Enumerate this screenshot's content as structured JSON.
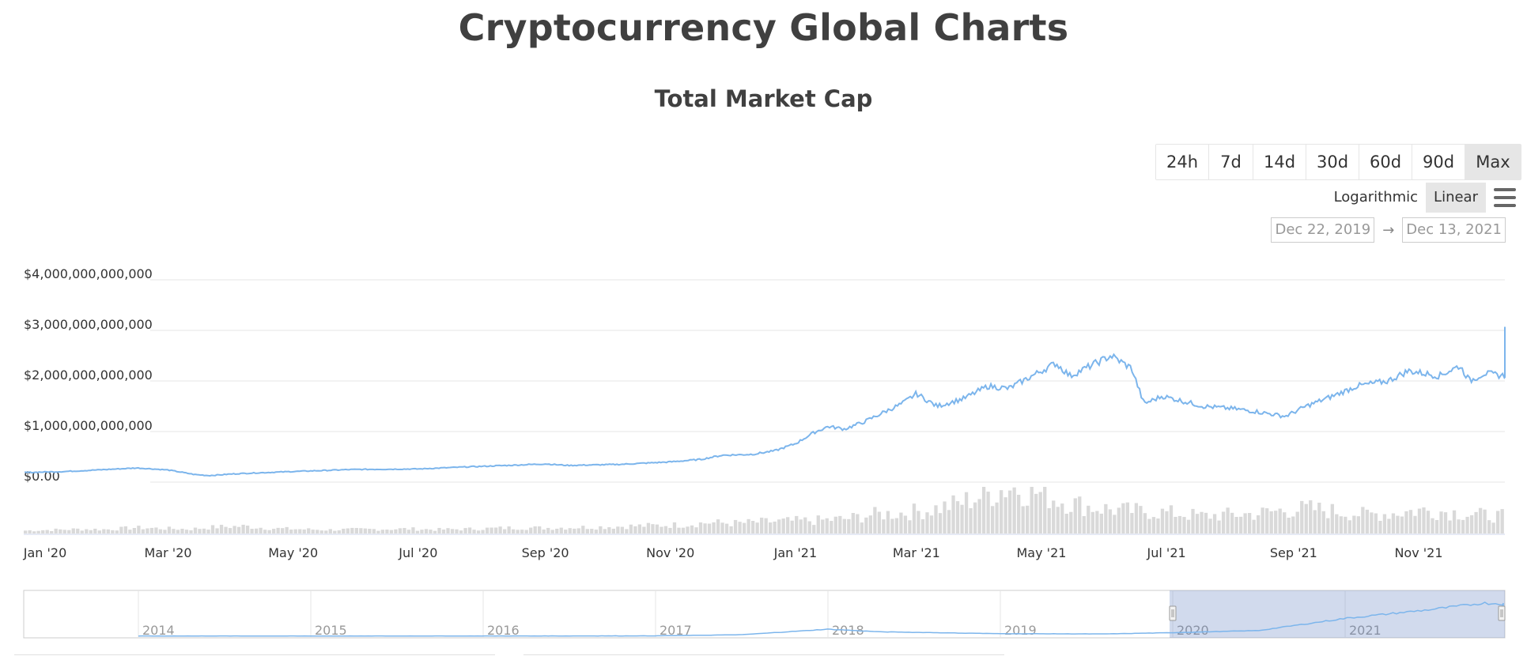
{
  "page": {
    "title": "Cryptocurrency Global Charts"
  },
  "chart_data": {
    "type": "line",
    "title": "Total Market Cap",
    "xlabel": "",
    "ylabel": "",
    "grid": true,
    "ylim": [
      0,
      4000000000000
    ],
    "y_ticks": [
      0,
      1000000000000,
      2000000000000,
      3000000000000,
      4000000000000
    ],
    "y_tick_labels": [
      "$0.00",
      "$1,000,000,000,000",
      "$2,000,000,000,000",
      "$3,000,000,000,000",
      "$4,000,000,000,000"
    ],
    "x_tick_labels": [
      "Jan '20",
      "Mar '20",
      "May '20",
      "Jul '20",
      "Sep '20",
      "Nov '20",
      "Jan '21",
      "Mar '21",
      "May '21",
      "Jul '21",
      "Sep '21",
      "Nov '21"
    ],
    "x_tick_days": [
      10,
      70,
      131,
      192,
      254,
      315,
      376,
      435,
      496,
      557,
      619,
      680
    ],
    "x_range_days": [
      0,
      722
    ],
    "series": [
      {
        "name": "Total Market Cap",
        "unit": "USD trillions",
        "color": "#7cb5ec",
        "points": [
          [
            0,
            0.19
          ],
          [
            20,
            0.21
          ],
          [
            40,
            0.25
          ],
          [
            55,
            0.28
          ],
          [
            70,
            0.24
          ],
          [
            83,
            0.15
          ],
          [
            90,
            0.13
          ],
          [
            105,
            0.17
          ],
          [
            131,
            0.21
          ],
          [
            160,
            0.25
          ],
          [
            192,
            0.26
          ],
          [
            215,
            0.3
          ],
          [
            235,
            0.33
          ],
          [
            254,
            0.36
          ],
          [
            265,
            0.33
          ],
          [
            290,
            0.35
          ],
          [
            315,
            0.4
          ],
          [
            330,
            0.45
          ],
          [
            340,
            0.53
          ],
          [
            355,
            0.55
          ],
          [
            366,
            0.62
          ],
          [
            376,
            0.76
          ],
          [
            385,
            0.98
          ],
          [
            392,
            1.1
          ],
          [
            400,
            1.05
          ],
          [
            410,
            1.2
          ],
          [
            420,
            1.4
          ],
          [
            428,
            1.55
          ],
          [
            435,
            1.75
          ],
          [
            445,
            1.5
          ],
          [
            458,
            1.65
          ],
          [
            470,
            1.9
          ],
          [
            480,
            1.85
          ],
          [
            496,
            2.2
          ],
          [
            503,
            2.35
          ],
          [
            510,
            2.1
          ],
          [
            520,
            2.3
          ],
          [
            530,
            2.5
          ],
          [
            540,
            2.25
          ],
          [
            546,
            1.55
          ],
          [
            555,
            1.7
          ],
          [
            565,
            1.6
          ],
          [
            575,
            1.5
          ],
          [
            590,
            1.45
          ],
          [
            600,
            1.4
          ],
          [
            615,
            1.3
          ],
          [
            625,
            1.5
          ],
          [
            638,
            1.7
          ],
          [
            650,
            1.9
          ],
          [
            665,
            2.0
          ],
          [
            675,
            2.2
          ],
          [
            690,
            2.1
          ],
          [
            700,
            2.3
          ],
          [
            705,
            2.0
          ],
          [
            712,
            2.15
          ],
          [
            722,
            2.1
          ],
          [
            735,
            2.6
          ],
          [
            750,
            2.7
          ],
          [
            765,
            2.85
          ],
          [
            775,
            3.0
          ],
          [
            785,
            2.8
          ],
          [
            795,
            2.75
          ],
          [
            805,
            2.4
          ]
        ]
      }
    ],
    "volume_series": {
      "name": "Volume",
      "color": "#d9d9d9",
      "unit": "relative",
      "values": [
        0.2,
        0.25,
        0.3,
        0.28,
        0.4,
        0.35,
        0.3,
        0.45,
        0.5,
        0.35,
        0.3,
        0.25,
        0.28,
        0.3,
        0.32,
        0.27,
        0.3,
        0.35,
        0.4,
        0.38,
        0.42,
        0.45,
        0.5,
        0.55,
        0.6,
        0.75,
        0.7,
        0.8,
        0.85,
        0.9,
        1.0,
        1.3,
        1.4,
        1.6,
        2.0,
        2.6,
        3.2,
        2.8,
        2.2,
        1.8,
        1.6,
        1.5,
        1.4,
        1.2,
        1.3,
        1.35,
        1.6,
        1.7,
        1.5,
        1.3,
        1.4,
        1.6,
        1.5,
        1.3,
        1.2
      ]
    },
    "navigator": {
      "year_labels": [
        "2014",
        "2015",
        "2016",
        "2017",
        "2018",
        "2019",
        "2020",
        "2021"
      ],
      "points": [
        [
          0,
          0.02
        ],
        [
          1,
          0.02
        ],
        [
          2,
          0.02
        ],
        [
          3,
          0.03
        ],
        [
          3.5,
          0.12
        ],
        [
          4,
          0.55
        ],
        [
          4.3,
          0.35
        ],
        [
          5,
          0.2
        ],
        [
          5.6,
          0.18
        ],
        [
          6,
          0.28
        ],
        [
          6.5,
          0.45
        ],
        [
          7,
          1.4
        ],
        [
          7.5,
          2.1
        ],
        [
          7.8,
          2.6
        ],
        [
          8.2,
          2.4
        ]
      ],
      "selected_range_years": [
        6.0,
        8.2
      ]
    }
  },
  "controls": {
    "range_buttons": [
      "24h",
      "7d",
      "14d",
      "30d",
      "60d",
      "90d",
      "Max"
    ],
    "range_active": "Max",
    "scale_options": [
      "Logarithmic",
      "Linear"
    ],
    "scale_active": "Linear",
    "date_from": "Dec 22, 2019",
    "date_arrow": "→",
    "date_to": "Dec 13, 2021"
  }
}
